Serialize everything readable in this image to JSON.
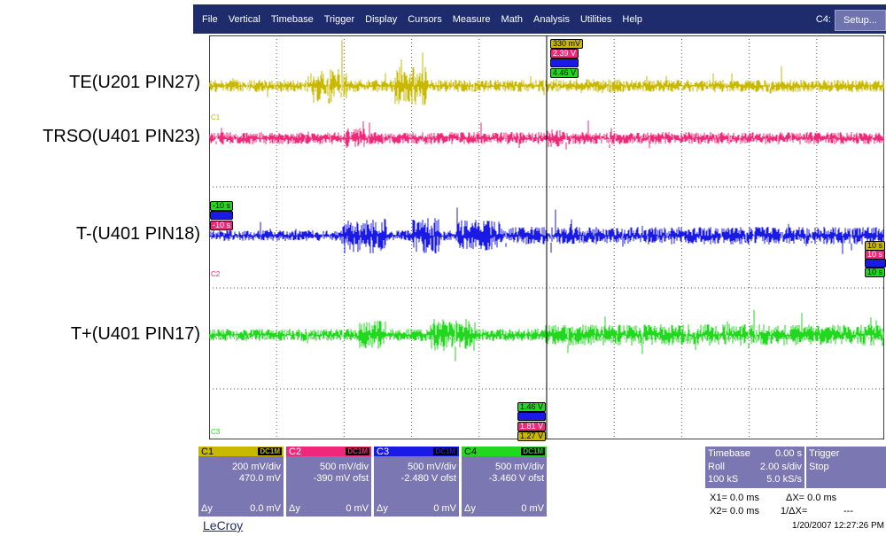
{
  "side_labels": [
    "TE(U201 PIN27)",
    "TRSO(U401 PIN23)",
    "T-(U401 PIN18)",
    "T+(U401 PIN17)"
  ],
  "menu": [
    "File",
    "Vertical",
    "Timebase",
    "Trigger",
    "Display",
    "Cursors",
    "Measure",
    "Math",
    "Analysis",
    "Utilities",
    "Help"
  ],
  "c4_label": "C4:",
  "setup_label": "Setup...",
  "trace_colors": {
    "c1": "#c8b900",
    "c2": "#f0287a",
    "c3": "#1a1ae6",
    "c4": "#22d81e"
  },
  "grid_markers": {
    "c1": "C1",
    "c2": "C2",
    "c3": "C3"
  },
  "tags": {
    "top": [
      "330 mV",
      "2.39 V",
      "",
      "4.46 V"
    ],
    "left": [
      "-10 s",
      "",
      "-10 s"
    ],
    "right": [
      "10 s",
      "10 s",
      "",
      "10 s"
    ],
    "bottom": [
      "1.46 V",
      "",
      "1.81 V",
      "1.27 V"
    ]
  },
  "channels": [
    {
      "name": "C1",
      "coupling": "DC1M",
      "scale": "200 mV/div",
      "offset": "470.0 mV",
      "dy": "Δy",
      "dv": "0.0 mV"
    },
    {
      "name": "C2",
      "coupling": "DC1M",
      "scale": "500 mV/div",
      "offset": "-390 mV ofst",
      "dy": "Δy",
      "dv": "0 mV"
    },
    {
      "name": "C3",
      "coupling": "DC1M",
      "scale": "500 mV/div",
      "offset": "-2.480 V ofst",
      "dy": "Δy",
      "dv": "0 mV"
    },
    {
      "name": "C4",
      "coupling": "DC1M",
      "scale": "500 mV/div",
      "offset": "-3.460 V ofst",
      "dy": "Δy",
      "dv": "0 mV"
    }
  ],
  "timebase": {
    "title": "Timebase",
    "delay": "0.00 s",
    "mode": "Roll",
    "rate": "2.00 s/div",
    "samples": "100 kS",
    "srate": "5.0 kS/s"
  },
  "trigger": {
    "title": "Trigger",
    "state": "Stop"
  },
  "cursors": {
    "x1": "X1=  0.0 ms",
    "dx": "ΔX=  0.0 ms",
    "x2": "X2=  0.0 ms",
    "inv": "1/ΔX=",
    "inv_val": "---"
  },
  "logo": "LeCroy",
  "timestamp": "1/20/2007 12:27:26 PM"
}
